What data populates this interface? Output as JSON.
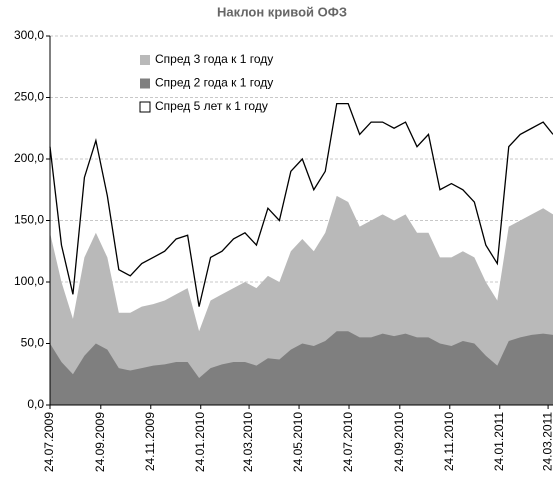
{
  "chart_data": {
    "type": "line",
    "title": "Наклон кривой ОФЗ",
    "x": [
      "2009-07-24",
      "2009-08-07",
      "2009-08-21",
      "2009-09-04",
      "2009-09-18",
      "2009-10-02",
      "2009-10-16",
      "2009-10-30",
      "2009-11-13",
      "2009-11-27",
      "2009-12-11",
      "2009-12-25",
      "2010-01-08",
      "2010-01-22",
      "2010-02-05",
      "2010-02-19",
      "2010-03-05",
      "2010-03-19",
      "2010-04-02",
      "2010-04-16",
      "2010-04-30",
      "2010-05-14",
      "2010-05-28",
      "2010-06-11",
      "2010-06-25",
      "2010-07-09",
      "2010-07-23",
      "2010-08-06",
      "2010-08-20",
      "2010-09-03",
      "2010-09-17",
      "2010-10-01",
      "2010-10-15",
      "2010-10-29",
      "2010-11-12",
      "2010-11-26",
      "2010-12-10",
      "2010-12-24",
      "2011-01-07",
      "2011-01-21",
      "2011-02-04",
      "2011-02-18",
      "2011-03-04",
      "2011-03-18",
      "2011-03-30"
    ],
    "series": [
      {
        "name": "Спред 3 года к 1 году",
        "kind": "area",
        "color": "#b9b9b9",
        "values": [
          140,
          100,
          70,
          120,
          140,
          120,
          75,
          75,
          80,
          82,
          85,
          90,
          95,
          60,
          85,
          90,
          95,
          100,
          95,
          105,
          100,
          125,
          135,
          125,
          140,
          170,
          165,
          145,
          150,
          155,
          150,
          155,
          140,
          140,
          120,
          120,
          125,
          120,
          100,
          85,
          145,
          150,
          155,
          160,
          155
        ]
      },
      {
        "name": "Спред 2 года к 1 году",
        "kind": "area",
        "color": "#7f7f7f",
        "values": [
          50,
          35,
          25,
          40,
          50,
          45,
          30,
          28,
          30,
          32,
          33,
          35,
          35,
          22,
          30,
          33,
          35,
          35,
          32,
          38,
          37,
          45,
          50,
          48,
          52,
          60,
          60,
          55,
          55,
          58,
          56,
          58,
          55,
          55,
          50,
          48,
          52,
          50,
          40,
          32,
          52,
          55,
          57,
          58,
          57
        ]
      },
      {
        "name": "Спред 5 лет к 1 году",
        "kind": "line",
        "color": "#000000",
        "values": [
          210,
          130,
          90,
          185,
          215,
          170,
          110,
          105,
          115,
          120,
          125,
          135,
          138,
          80,
          120,
          125,
          135,
          140,
          130,
          160,
          150,
          190,
          200,
          175,
          190,
          245,
          245,
          220,
          230,
          230,
          225,
          230,
          210,
          220,
          175,
          180,
          175,
          165,
          130,
          115,
          210,
          220,
          225,
          230,
          220
        ]
      }
    ],
    "xlim": [
      "2009-07-24",
      "2011-03-30"
    ],
    "xticks": [
      {
        "value": "2009-07-24",
        "label": "24.07.2009"
      },
      {
        "value": "2009-09-24",
        "label": "24.09.2009"
      },
      {
        "value": "2009-11-24",
        "label": "24.11.2009"
      },
      {
        "value": "2010-01-24",
        "label": "24.01.2010"
      },
      {
        "value": "2010-03-24",
        "label": "24.03.2010"
      },
      {
        "value": "2010-05-24",
        "label": "24.05.2010"
      },
      {
        "value": "2010-07-24",
        "label": "24.07.2010"
      },
      {
        "value": "2010-09-24",
        "label": "24.09.2010"
      },
      {
        "value": "2010-11-24",
        "label": "24.11.2010"
      },
      {
        "value": "2011-01-24",
        "label": "24.01.2011"
      },
      {
        "value": "2011-03-24",
        "label": "24.03.2011"
      }
    ],
    "ylim": [
      0,
      300
    ],
    "yticks": [
      {
        "value": 0,
        "label": "0,0"
      },
      {
        "value": 50,
        "label": "50,0"
      },
      {
        "value": 100,
        "label": "100,0"
      },
      {
        "value": 150,
        "label": "150,0"
      },
      {
        "value": 200,
        "label": "200,0"
      },
      {
        "value": 250,
        "label": "250,0"
      },
      {
        "value": 300,
        "label": "300,0"
      }
    ],
    "grid": true
  }
}
